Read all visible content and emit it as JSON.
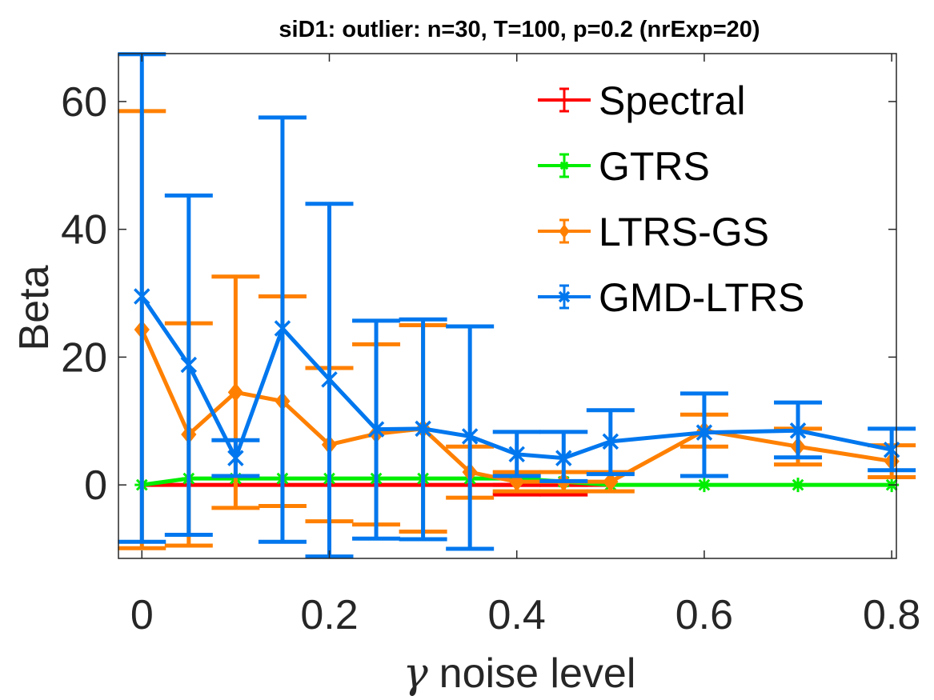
{
  "chart_data": {
    "type": "line",
    "title": "siD1: outlier: n=30, T=100, p=0.2 (nrExp=20)",
    "xlabel": {
      "symbol": "γ",
      "text": "noise level"
    },
    "ylabel": "Beta",
    "xlim": [
      -0.025,
      0.805
    ],
    "ylim": [
      -11.5,
      67.5
    ],
    "xticks": [
      0,
      0.2,
      0.4,
      0.6,
      0.8
    ],
    "xtick_labels": [
      "0",
      "0.2",
      "0.4",
      "0.6",
      "0.8"
    ],
    "yticks": [
      0,
      20,
      40,
      60
    ],
    "ytick_labels": [
      "0",
      "20",
      "40",
      "60"
    ],
    "grid": false,
    "legend_position": "top-right",
    "series": [
      {
        "name": "Spectral",
        "color": "#ff0000",
        "marker": "none",
        "x": [
          0,
          0.05,
          0.1,
          0.15,
          0.2,
          0.25,
          0.3,
          0.35,
          0.4,
          0.45,
          0.5
        ],
        "y": [
          0,
          0,
          0,
          0,
          0,
          0,
          0,
          0,
          0,
          0,
          0
        ],
        "lower": [
          0,
          0,
          0,
          0,
          0,
          0,
          0,
          0,
          -1.5,
          -1.5,
          0
        ],
        "upper": [
          0,
          0,
          0,
          0,
          0,
          0,
          0,
          0,
          0,
          0,
          0
        ]
      },
      {
        "name": "GTRS",
        "color": "#00ee00",
        "marker": "star",
        "x": [
          0,
          0.05,
          0.1,
          0.15,
          0.2,
          0.25,
          0.3,
          0.35,
          0.4,
          0.45,
          0.5,
          0.6,
          0.7,
          0.8
        ],
        "y": [
          0,
          1,
          1,
          1,
          1,
          1,
          1,
          1,
          1,
          0.5,
          0,
          0,
          0,
          0
        ],
        "lower": [
          0,
          1,
          1,
          1,
          1,
          1,
          1,
          1,
          1,
          0.5,
          0,
          0,
          0,
          0
        ],
        "upper": [
          0,
          1,
          1,
          1,
          1,
          1,
          1,
          1,
          1,
          0.5,
          0,
          0,
          0,
          0
        ]
      },
      {
        "name": "LTRS-GS",
        "color": "#ff8000",
        "marker": "diamond",
        "x": [
          0,
          0.05,
          0.1,
          0.15,
          0.2,
          0.25,
          0.3,
          0.35,
          0.4,
          0.45,
          0.5,
          0.6,
          0.7,
          0.8
        ],
        "y": [
          24.3,
          7.9,
          14.5,
          13.1,
          6.3,
          8.0,
          8.8,
          2.0,
          0.5,
          0.5,
          0.5,
          8.5,
          6.0,
          3.7
        ],
        "lower": [
          -9.9,
          -9.5,
          -3.6,
          -3.3,
          -5.7,
          -6.2,
          -7.3,
          -2.0,
          -1.0,
          -1.0,
          -1.0,
          6.0,
          3.2,
          1.2
        ],
        "upper": [
          58.5,
          25.3,
          32.6,
          29.5,
          18.3,
          22.0,
          25.0,
          6.0,
          2.0,
          2.0,
          2.0,
          11.0,
          8.8,
          6.2
        ]
      },
      {
        "name": "GMD-LTRS",
        "color": "#0077ee",
        "marker": "x",
        "x": [
          0,
          0.05,
          0.1,
          0.15,
          0.2,
          0.25,
          0.3,
          0.35,
          0.4,
          0.45,
          0.5,
          0.6,
          0.7,
          0.8
        ],
        "y": [
          29.5,
          18.8,
          4.2,
          24.5,
          16.5,
          8.7,
          8.8,
          7.6,
          4.8,
          4.2,
          6.8,
          8.2,
          8.5,
          5.5
        ],
        "lower": [
          -8.9,
          -7.8,
          1.4,
          -8.9,
          -11.2,
          -8.4,
          -8.5,
          -10.0,
          1.4,
          0.6,
          1.7,
          1.4,
          4.3,
          2.3
        ],
        "upper": [
          67.4,
          45.3,
          7.0,
          57.5,
          44.0,
          25.7,
          25.9,
          24.8,
          8.3,
          8.3,
          11.7,
          14.3,
          12.9,
          8.8
        ]
      }
    ]
  }
}
